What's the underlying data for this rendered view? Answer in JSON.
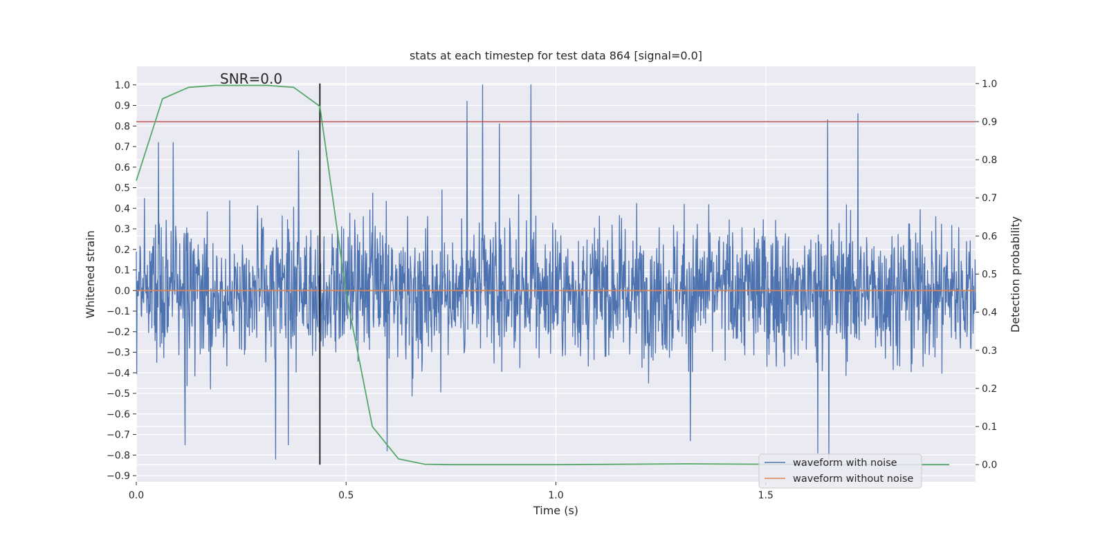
{
  "chart_data": {
    "type": "line",
    "title": "stats at each timestep for test data 864 [signal=0.0]",
    "xlabel": "Time (s)",
    "ylabel": "Whitened strain",
    "y2label": "Detection probability",
    "xlim": [
      0.0,
      2.0
    ],
    "ylim": [
      -0.93,
      1.09
    ],
    "y2lim": [
      -0.045,
      1.045
    ],
    "xticks": [
      0.0,
      0.5,
      1.0,
      1.5
    ],
    "xtick_labels": [
      "0.0",
      "0.5",
      "1.0",
      "1.5"
    ],
    "yticks": [
      1.0,
      0.9,
      0.8,
      0.7,
      0.6,
      0.5,
      0.4,
      0.3,
      0.2,
      0.1,
      0.0,
      -0.1,
      -0.2,
      -0.3,
      -0.4,
      -0.5,
      -0.6,
      -0.7,
      -0.8,
      -0.9
    ],
    "ytick_labels": [
      "1.0",
      "0.9",
      "0.8",
      "0.7",
      "0.6",
      "0.5",
      "0.4",
      "0.3",
      "0.2",
      "0.1",
      "0.0",
      "−0.1",
      "−0.2",
      "−0.3",
      "−0.4",
      "−0.5",
      "−0.6",
      "−0.7",
      "−0.8",
      "−0.9"
    ],
    "y2ticks": [
      1.0,
      0.9,
      0.8,
      0.7,
      0.6,
      0.5,
      0.4,
      0.3,
      0.2,
      0.1,
      0.0
    ],
    "y2tick_labels": [
      "1.0",
      "0.9",
      "0.8",
      "0.7",
      "0.6",
      "0.5",
      "0.4",
      "0.3",
      "0.2",
      "0.1",
      "0.0"
    ],
    "annotation": "SNR=0.0",
    "grid": true,
    "legend_position": "bottom-right",
    "series": [
      {
        "name": "waveform with noise",
        "axis": "left",
        "color": "#4c72b0",
        "kind": "noise",
        "t_start": 0.0,
        "t_end": 2.0,
        "samples": 2048,
        "max": 1.0,
        "min": -0.82,
        "typical_amplitude": 0.22,
        "peaks": [
          {
            "t": 0.825,
            "value": 1.0
          },
          {
            "t": 0.94,
            "value": 1.0
          },
          {
            "t": 0.788,
            "value": 0.92
          },
          {
            "t": 0.865,
            "value": 0.81
          },
          {
            "t": 1.647,
            "value": 0.83
          },
          {
            "t": 1.72,
            "value": 0.86
          },
          {
            "t": 0.053,
            "value": 0.72
          },
          {
            "t": 0.088,
            "value": 0.72
          },
          {
            "t": 0.387,
            "value": 0.68
          },
          {
            "t": 0.332,
            "value": -0.82
          },
          {
            "t": 0.362,
            "value": -0.75
          },
          {
            "t": 0.116,
            "value": -0.75
          },
          {
            "t": 0.598,
            "value": -0.78
          },
          {
            "t": 1.624,
            "value": -0.79
          },
          {
            "t": 1.65,
            "value": -0.82
          },
          {
            "t": 1.32,
            "value": -0.73
          }
        ]
      },
      {
        "name": "waveform without noise",
        "axis": "left",
        "color": "#dd8452",
        "x": [
          0.0,
          2.0
        ],
        "y": [
          0.0,
          0.0
        ]
      },
      {
        "name": "detection probability",
        "axis": "right",
        "color": "#55a868",
        "x": [
          0.0,
          0.0625,
          0.125,
          0.1875,
          0.25,
          0.3125,
          0.375,
          0.4375,
          0.5,
          0.5625,
          0.625,
          0.6875,
          0.75,
          1.0,
          1.3125,
          1.5,
          1.6875,
          1.9375
        ],
        "y": [
          0.745,
          0.96,
          0.99,
          0.995,
          0.995,
          0.995,
          0.99,
          0.94,
          0.45,
          0.1,
          0.015,
          0.001,
          0.0,
          0.0,
          0.002,
          0.001,
          0.0,
          0.0
        ]
      }
    ],
    "reference_lines": [
      {
        "name": "detection threshold",
        "axis": "right",
        "orientation": "horizontal",
        "value": 0.9,
        "color": "#c44e52"
      },
      {
        "name": "detection time",
        "axis": "bottom",
        "orientation": "vertical",
        "value": 0.4375,
        "color": "#000000"
      }
    ],
    "legend": [
      "waveform with noise",
      "waveform without noise"
    ]
  }
}
